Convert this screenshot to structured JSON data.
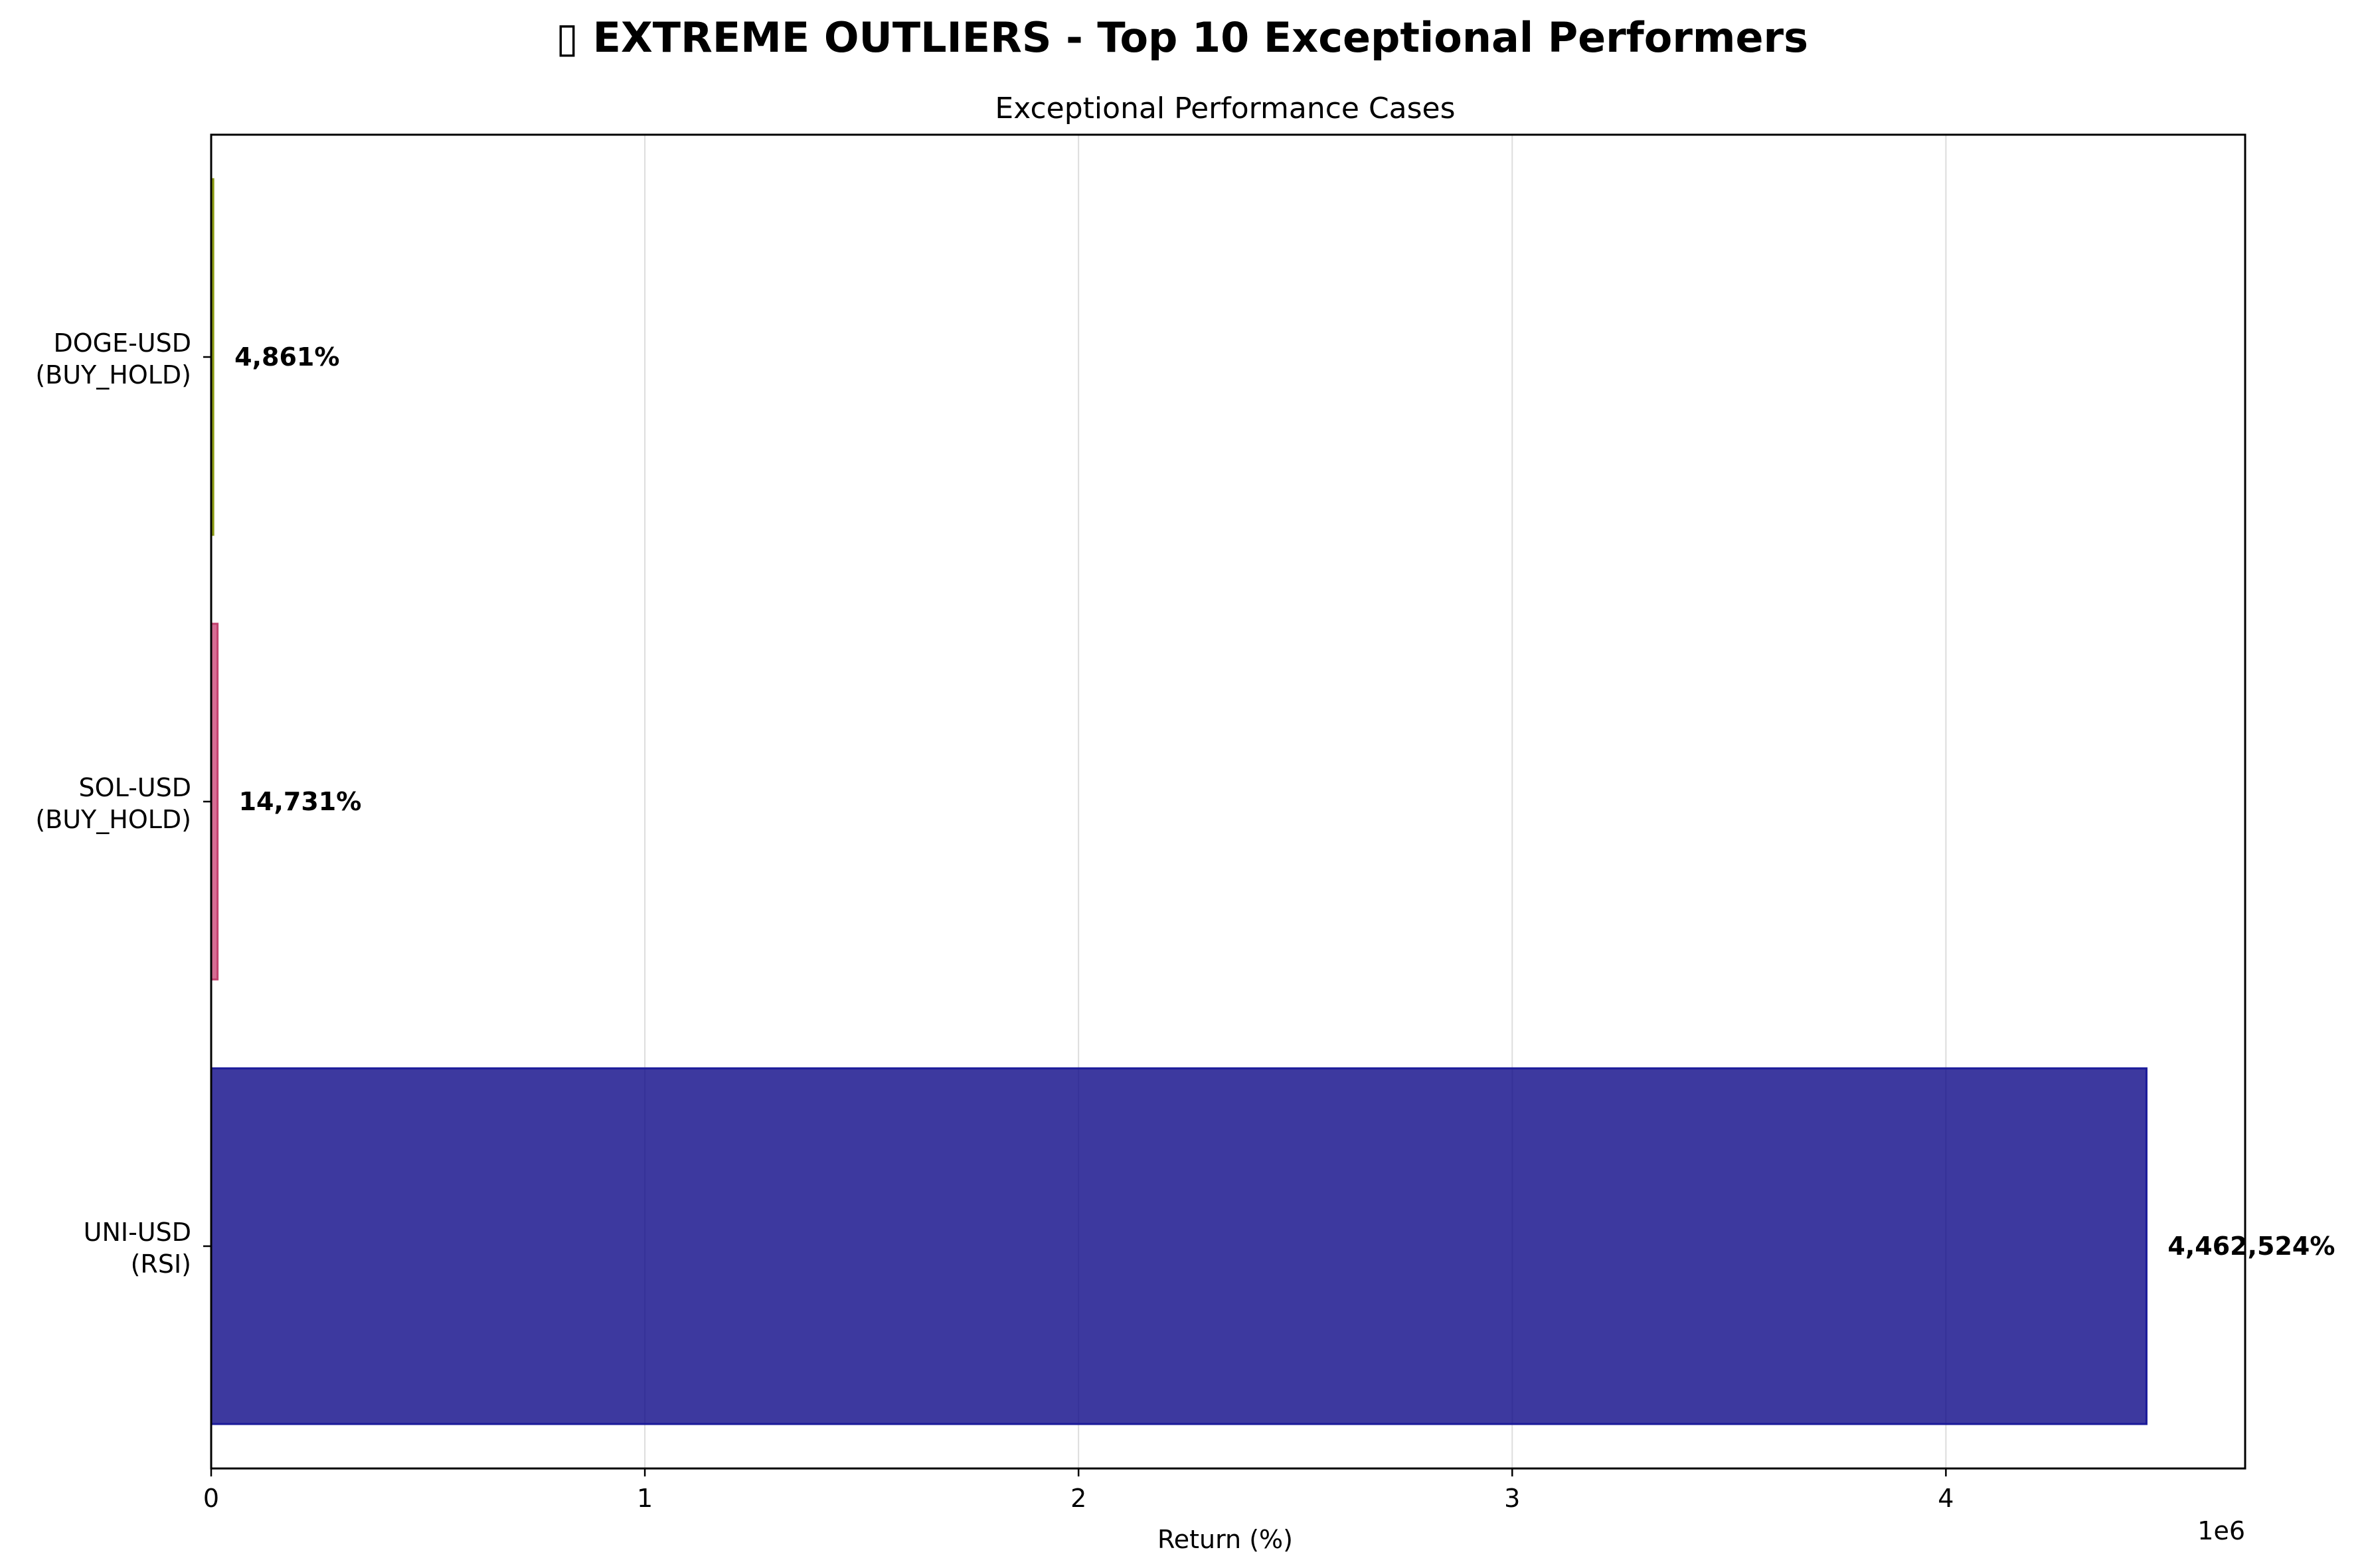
{
  "chart_data": {
    "type": "bar",
    "orientation": "horizontal",
    "title": "▯ EXTREME OUTLIERS - Top 10 Exceptional Performers",
    "subtitle": "Exceptional Performance Cases",
    "xlabel": "Return (%)",
    "ylabel": "",
    "x_offset_label": "1e6",
    "xlim": [
      0,
      4690000
    ],
    "x_ticks": [
      0,
      1000000,
      2000000,
      3000000,
      4000000
    ],
    "x_tick_labels": [
      "0",
      "1",
      "2",
      "3",
      "4"
    ],
    "grid": "x",
    "categories": [
      {
        "line1": "UNI-USD",
        "line2": "(RSI)"
      },
      {
        "line1": "SOL-USD",
        "line2": "(BUY_HOLD)"
      },
      {
        "line1": "DOGE-USD",
        "line2": "(BUY_HOLD)"
      }
    ],
    "values": [
      4462524,
      14731,
      4861
    ],
    "value_labels": [
      "4,462,524%",
      "14,731%",
      "4,861%"
    ],
    "colors": [
      "#0d0887",
      "#cc4778",
      "#c5d616"
    ],
    "edge_colors": [
      "#1a1a9a",
      "#c2416e",
      "#8a9a10"
    ]
  }
}
